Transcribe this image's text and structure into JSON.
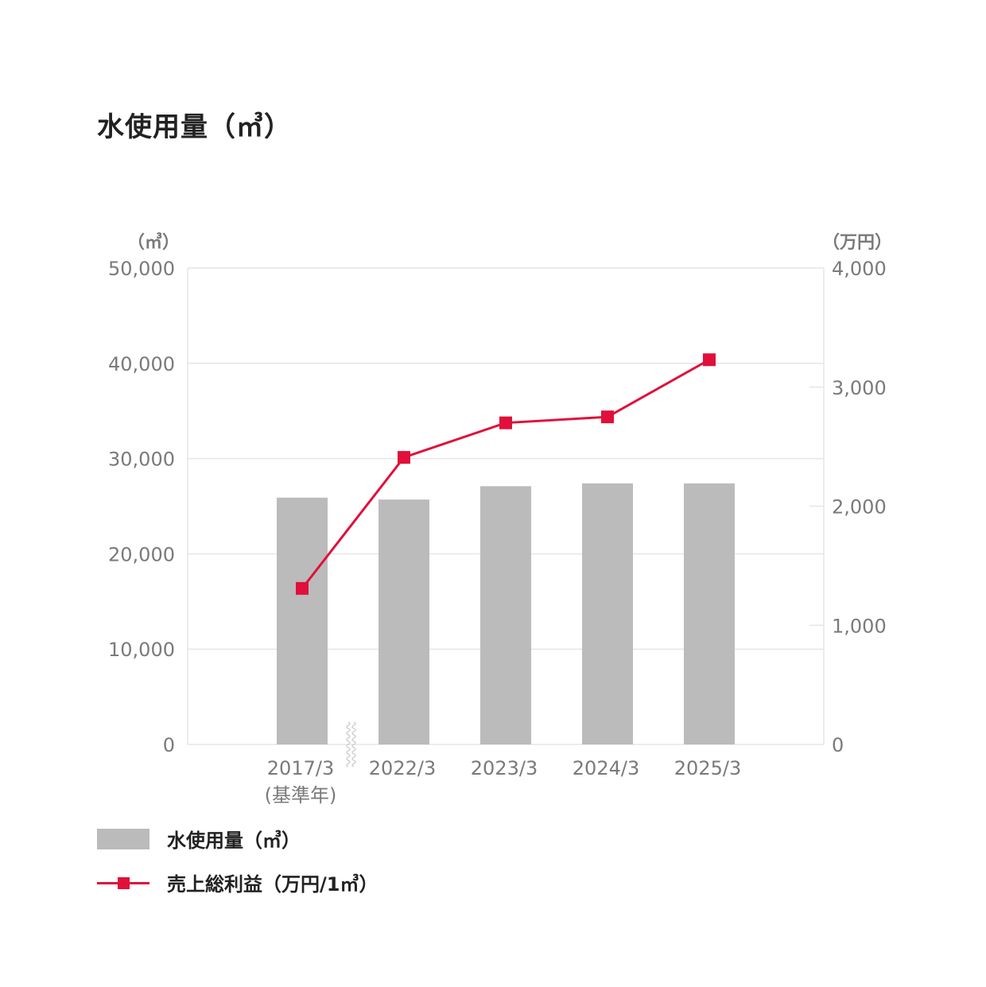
{
  "title": "水使用量（㎥）",
  "colors": {
    "bar": "#bbbbbb",
    "line": "#e0103a",
    "grid": "#e6e6e6",
    "axis_text": "#7a7a7a"
  },
  "legend": [
    {
      "label": "水使用量（㎥）",
      "type": "bar"
    },
    {
      "label": "売上総利益（万円/1㎥）",
      "type": "line"
    }
  ],
  "chart_data": {
    "type": "bar",
    "categories": [
      "2017/3\n(基準年)",
      "2022/3",
      "2023/3",
      "2024/3",
      "2025/3"
    ],
    "axis_break_after": 0,
    "series": [
      {
        "name": "水使用量（㎥）",
        "type": "bar",
        "axis": "left",
        "values": [
          25900,
          25700,
          27100,
          27400,
          27400
        ]
      },
      {
        "name": "売上総利益（万円/1㎥）",
        "type": "line",
        "axis": "right",
        "values": [
          1310,
          2410,
          2700,
          2750,
          3230
        ]
      }
    ],
    "y_left": {
      "label": "（㎥）",
      "min": 0,
      "max": 50000,
      "ticks": [
        "0",
        "10,000",
        "20,000",
        "30,000",
        "40,000",
        "50,000"
      ]
    },
    "y_right": {
      "label": "（万円）",
      "min": 0,
      "max": 4000,
      "ticks": [
        "0",
        "1,000",
        "2,000",
        "3,000",
        "4,000"
      ]
    },
    "grid": true,
    "legend_position": "bottom-left"
  }
}
